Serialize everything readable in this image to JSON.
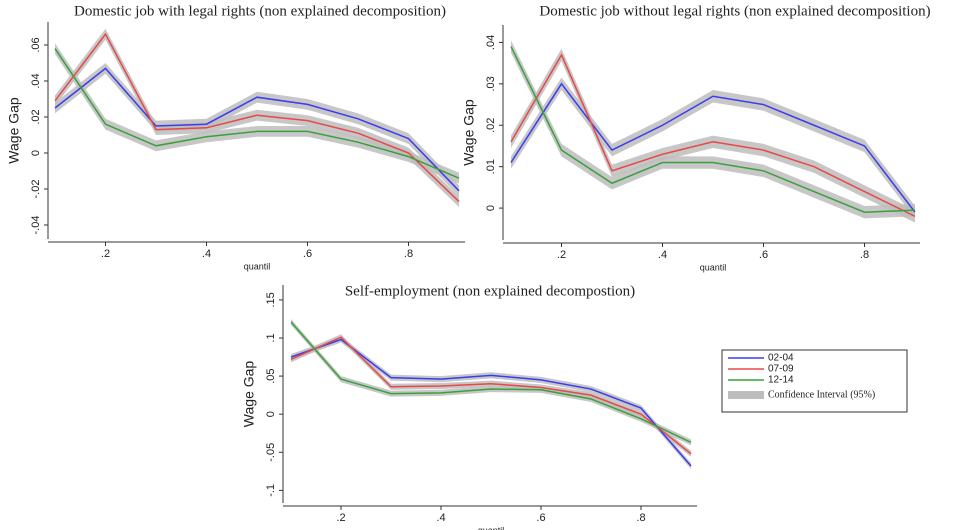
{
  "chart_data": [
    {
      "type": "line",
      "title": "Domestic job with legal rights (non explained decomposition)",
      "x_label": "quantil",
      "y_label": "Wage Gap",
      "x": [
        0.1,
        0.2,
        0.3,
        0.4,
        0.5,
        0.6,
        0.7,
        0.8,
        0.9
      ],
      "xlim": [
        0.1,
        0.9
      ],
      "ylim": [
        -0.045,
        0.07
      ],
      "xticks": [
        {
          "value": 0.2,
          "label": ".2"
        },
        {
          "value": 0.4,
          "label": ".4"
        },
        {
          "value": 0.6,
          "label": ".6"
        },
        {
          "value": 0.8,
          "label": ".8"
        }
      ],
      "yticks": [
        {
          "value": -0.04,
          "label": "-.04"
        },
        {
          "value": -0.02,
          "label": "-.02"
        },
        0,
        {
          "value": 0.02,
          "label": ".02"
        },
        {
          "value": 0.04,
          "label": ".04"
        },
        {
          "value": 0.06,
          "label": ".06"
        }
      ],
      "ci": 0.003,
      "ci_color": "#bdbdbd",
      "series": [
        {
          "color": "#3b3bf0",
          "values": [
            0.025,
            0.047,
            0.015,
            0.016,
            0.031,
            0.027,
            0.019,
            0.008,
            -0.021
          ]
        },
        {
          "color": "#e84848",
          "values": [
            0.029,
            0.066,
            0.013,
            0.014,
            0.021,
            0.018,
            0.011,
            0.0,
            -0.027
          ]
        },
        {
          "color": "#3aa03a",
          "values": [
            0.058,
            0.016,
            0.004,
            0.009,
            0.012,
            0.012,
            0.006,
            -0.002,
            -0.014
          ]
        }
      ]
    },
    {
      "type": "line",
      "title": "Domestic job without legal rights (non explained decomposition)",
      "x_label": "quantil",
      "y_label": "Wage Gap",
      "x": [
        0.1,
        0.2,
        0.3,
        0.4,
        0.5,
        0.6,
        0.7,
        0.8,
        0.9
      ],
      "xlim": [
        0.1,
        0.9
      ],
      "ylim": [
        -0.0065,
        0.043
      ],
      "xticks": [
        {
          "value": 0.2,
          "label": ".2"
        },
        {
          "value": 0.4,
          "label": ".4"
        },
        {
          "value": 0.6,
          "label": ".6"
        },
        {
          "value": 0.8,
          "label": ".8"
        }
      ],
      "yticks": [
        0,
        {
          "value": 0.01,
          "label": ".01"
        },
        {
          "value": 0.02,
          "label": ".02"
        },
        {
          "value": 0.03,
          "label": ".03"
        },
        {
          "value": 0.04,
          "label": ".04"
        }
      ],
      "ci": 0.0015,
      "ci_color": "#bdbdbd",
      "series": [
        {
          "color": "#3b3bf0",
          "values": [
            0.011,
            0.03,
            0.014,
            0.02,
            0.027,
            0.025,
            0.02,
            0.015,
            -0.001
          ]
        },
        {
          "color": "#e84848",
          "values": [
            0.016,
            0.037,
            0.009,
            0.013,
            0.016,
            0.014,
            0.01,
            0.004,
            -0.002
          ]
        },
        {
          "color": "#3aa03a",
          "values": [
            0.039,
            0.014,
            0.006,
            0.011,
            0.011,
            0.009,
            0.004,
            -0.001,
            -0.0005
          ]
        }
      ]
    },
    {
      "type": "line",
      "title": "Self-employment (non explained decompostion)",
      "x_label": "quantil",
      "y_label": "Wage Gap",
      "x": [
        0.1,
        0.2,
        0.3,
        0.4,
        0.5,
        0.6,
        0.7,
        0.8,
        0.9
      ],
      "xlim": [
        0.1,
        0.9
      ],
      "ylim": [
        -0.11,
        0.163
      ],
      "xticks": [
        {
          "value": 0.2,
          "label": ".2"
        },
        {
          "value": 0.4,
          "label": ".4"
        },
        {
          "value": 0.6,
          "label": ".6"
        },
        {
          "value": 0.8,
          "label": ".8"
        }
      ],
      "yticks": [
        {
          "value": -0.1,
          "label": "-.1"
        },
        {
          "value": -0.05,
          "label": "-.05"
        },
        0,
        {
          "value": 0.05,
          "label": ".05"
        },
        {
          "value": 0.1,
          "label": ".1"
        },
        {
          "value": 0.15,
          "label": ".15"
        }
      ],
      "ci": 0.004,
      "ci_color": "#bdbdbd",
      "ci_label": "Confidence Interval (95%)",
      "legend": "right",
      "series": [
        {
          "name": "02-04",
          "color": "#3b3bf0",
          "values": [
            0.075,
            0.098,
            0.048,
            0.046,
            0.051,
            0.045,
            0.033,
            0.008,
            -0.068
          ]
        },
        {
          "name": "07-09",
          "color": "#e84848",
          "values": [
            0.072,
            0.101,
            0.036,
            0.037,
            0.04,
            0.035,
            0.025,
            0.0,
            -0.052
          ]
        },
        {
          "name": "12-14",
          "color": "#3aa03a",
          "values": [
            0.121,
            0.046,
            0.027,
            0.028,
            0.033,
            0.032,
            0.02,
            -0.006,
            -0.037
          ]
        }
      ]
    }
  ]
}
